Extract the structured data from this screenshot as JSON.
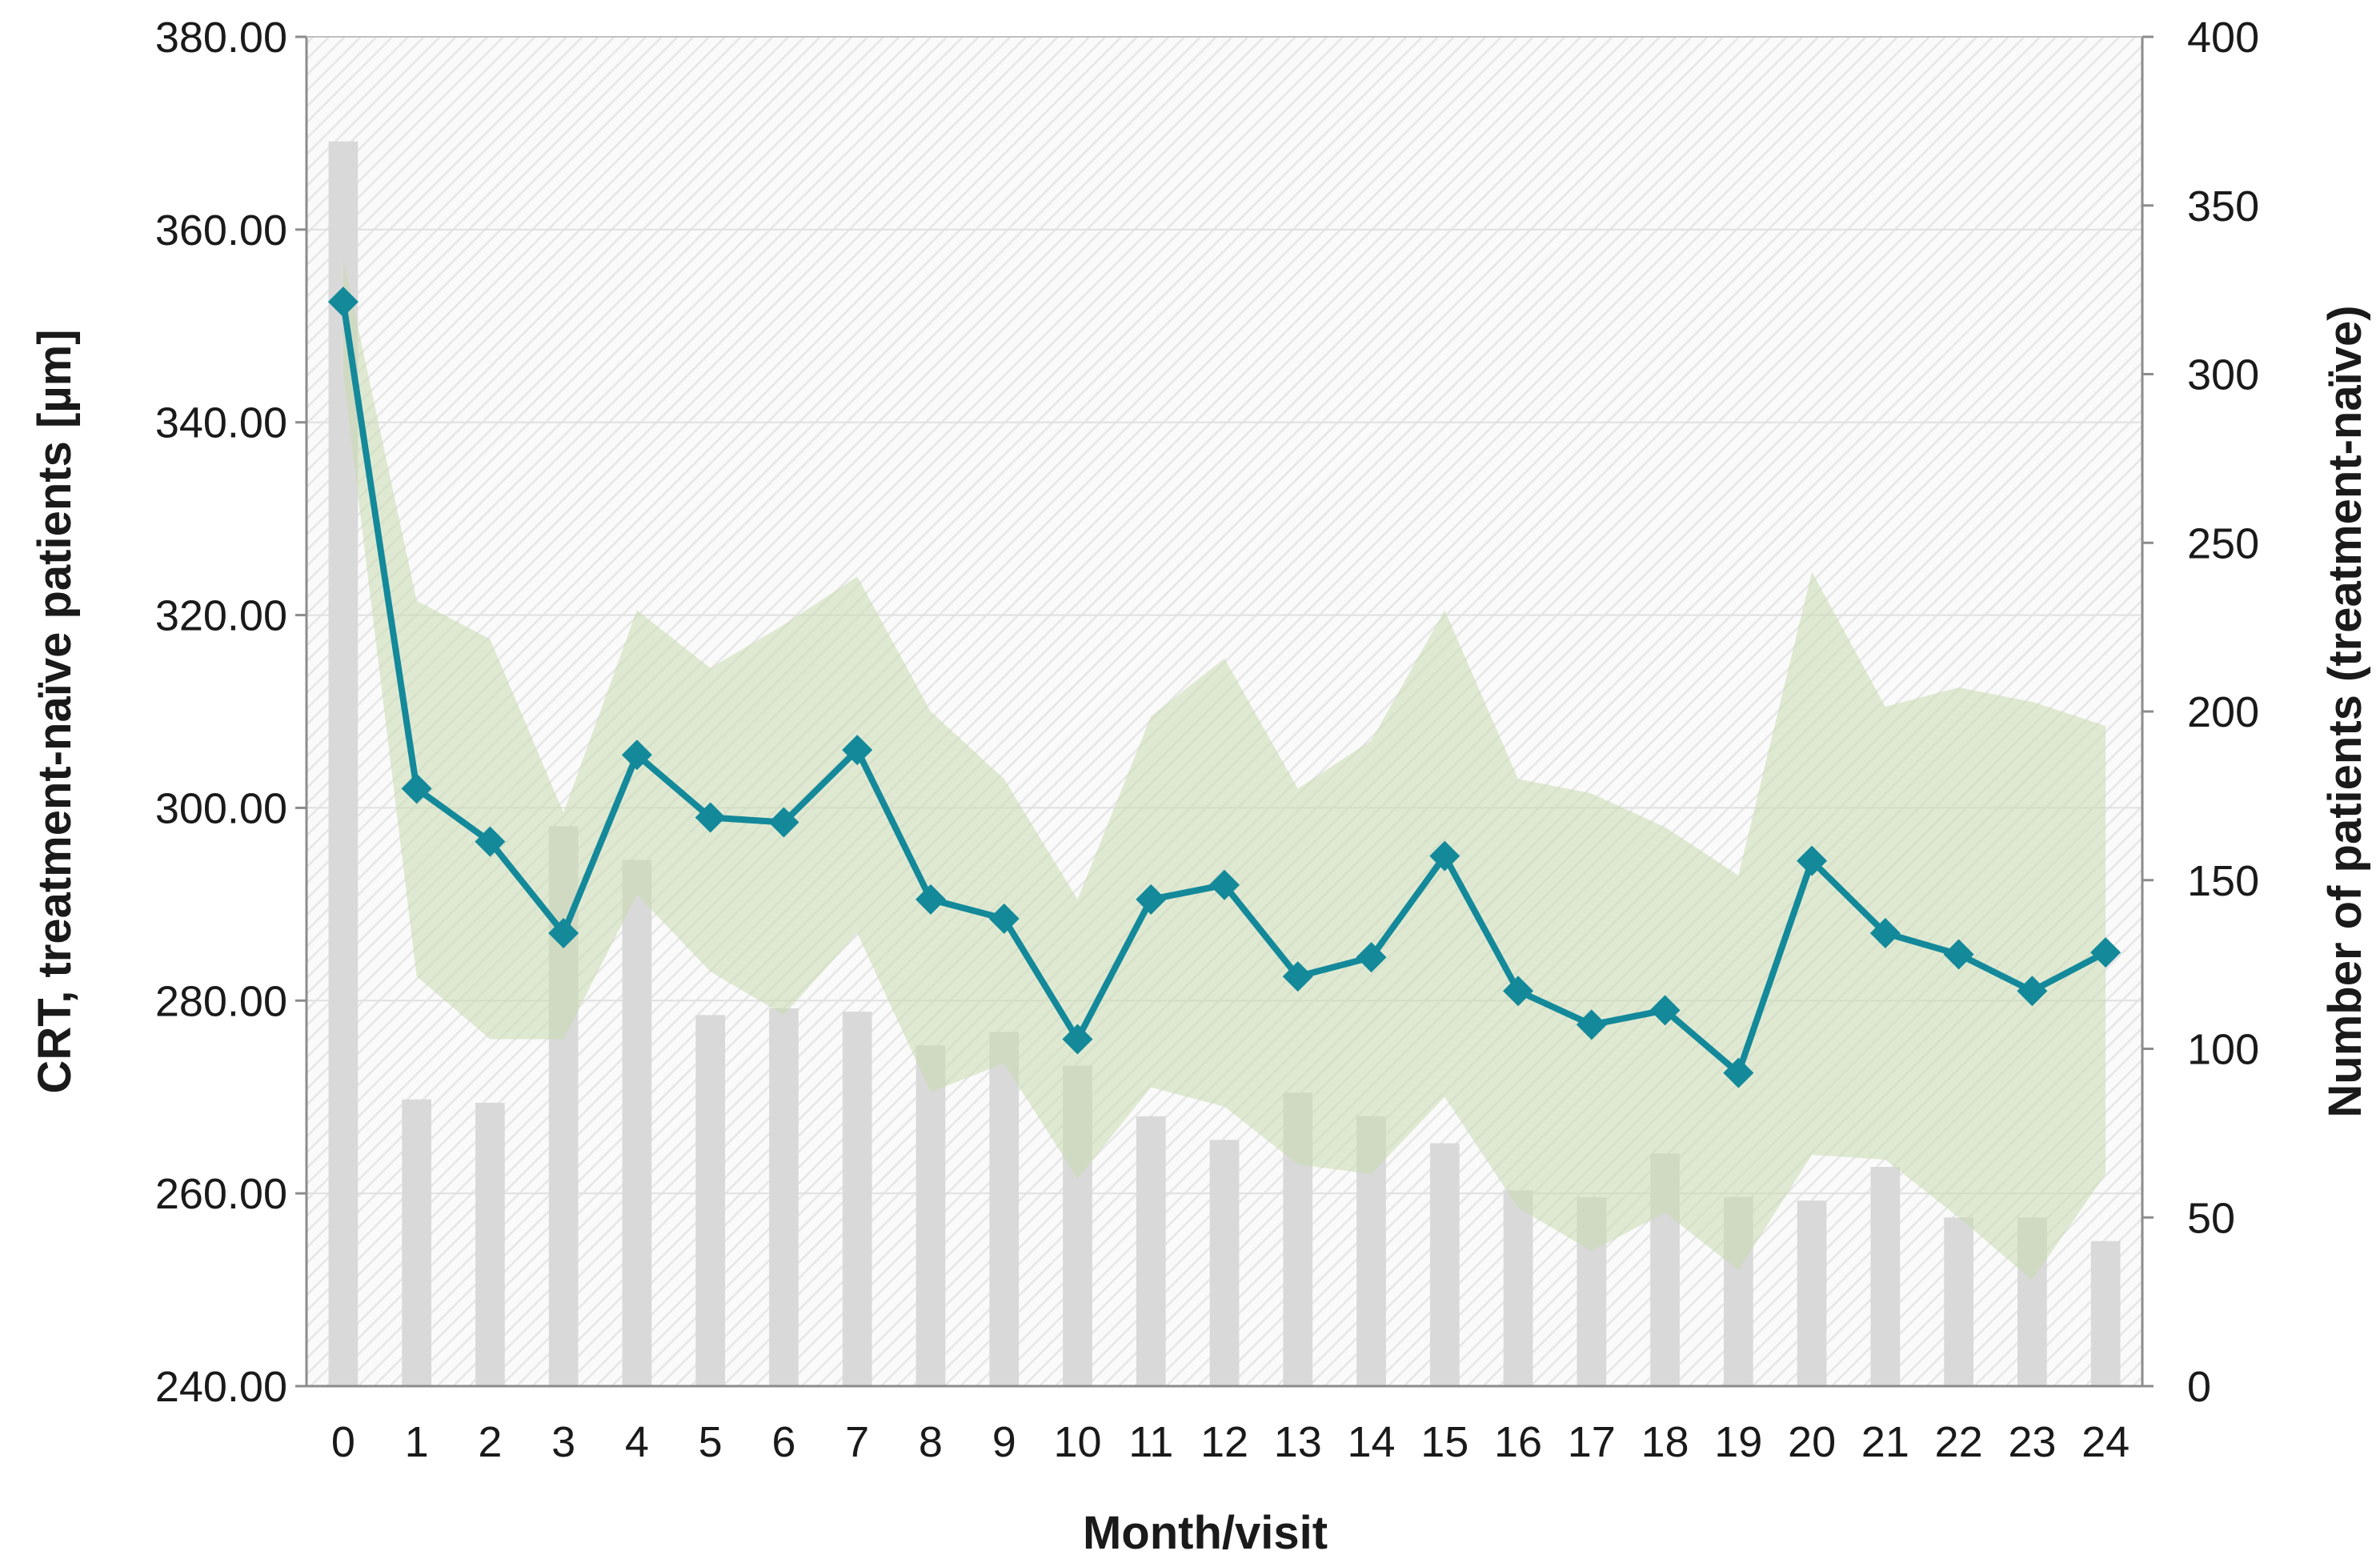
{
  "chart_data": {
    "type": "line",
    "title": "",
    "xlabel": "Month/visit",
    "ylabel": "CRT, treatment-naïve patients [µm]",
    "y2label": "Number of patients (treatment-naïve)",
    "categories": [
      "0",
      "1",
      "2",
      "3",
      "4",
      "5",
      "6",
      "7",
      "8",
      "9",
      "10",
      "11",
      "12",
      "13",
      "14",
      "15",
      "16",
      "17",
      "18",
      "19",
      "20",
      "21",
      "22",
      "23",
      "24"
    ],
    "ylim": [
      240,
      380
    ],
    "yticks": [
      "240.00",
      "260.00",
      "280.00",
      "300.00",
      "320.00",
      "340.00",
      "360.00",
      "380.00"
    ],
    "y2lim": [
      0,
      400
    ],
    "y2ticks": [
      "0",
      "50",
      "100",
      "150",
      "200",
      "250",
      "300",
      "350",
      "400"
    ],
    "grid": true,
    "series": [
      {
        "type": "line",
        "axis": "left",
        "color": "#13899a",
        "marker": "diamond",
        "values": [
          352.5,
          302,
          296.5,
          287,
          305.5,
          299,
          298.5,
          306,
          290.5,
          288.5,
          276,
          290.5,
          292,
          282.5,
          284.5,
          295,
          281,
          277.5,
          279,
          272.5,
          294.5,
          287,
          284.8,
          281,
          285
        ]
      },
      {
        "type": "area-band",
        "axis": "left",
        "color": "#c9dbb0",
        "lower": [
          345,
          282.5,
          276,
          276,
          291,
          283,
          278.5,
          287,
          270.5,
          273.5,
          261.5,
          271,
          269,
          263,
          262,
          270,
          258.5,
          254,
          258,
          252,
          264,
          263.5,
          257.5,
          251,
          262
        ],
        "upper": [
          357,
          321.5,
          317.5,
          299.5,
          320.5,
          314.5,
          319,
          324,
          310,
          303,
          290.5,
          309.5,
          315.5,
          302,
          307,
          320.5,
          303,
          301.5,
          298,
          293,
          324.5,
          310.5,
          312.5,
          311,
          308.5
        ]
      },
      {
        "type": "bar",
        "axis": "right",
        "color": "#d9d9d9",
        "values": [
          369,
          85,
          84,
          166,
          156,
          110,
          112,
          111,
          101,
          105,
          95,
          80,
          73,
          87,
          80,
          72,
          58,
          56,
          69,
          56,
          55,
          65,
          50,
          50,
          43
        ]
      }
    ]
  }
}
